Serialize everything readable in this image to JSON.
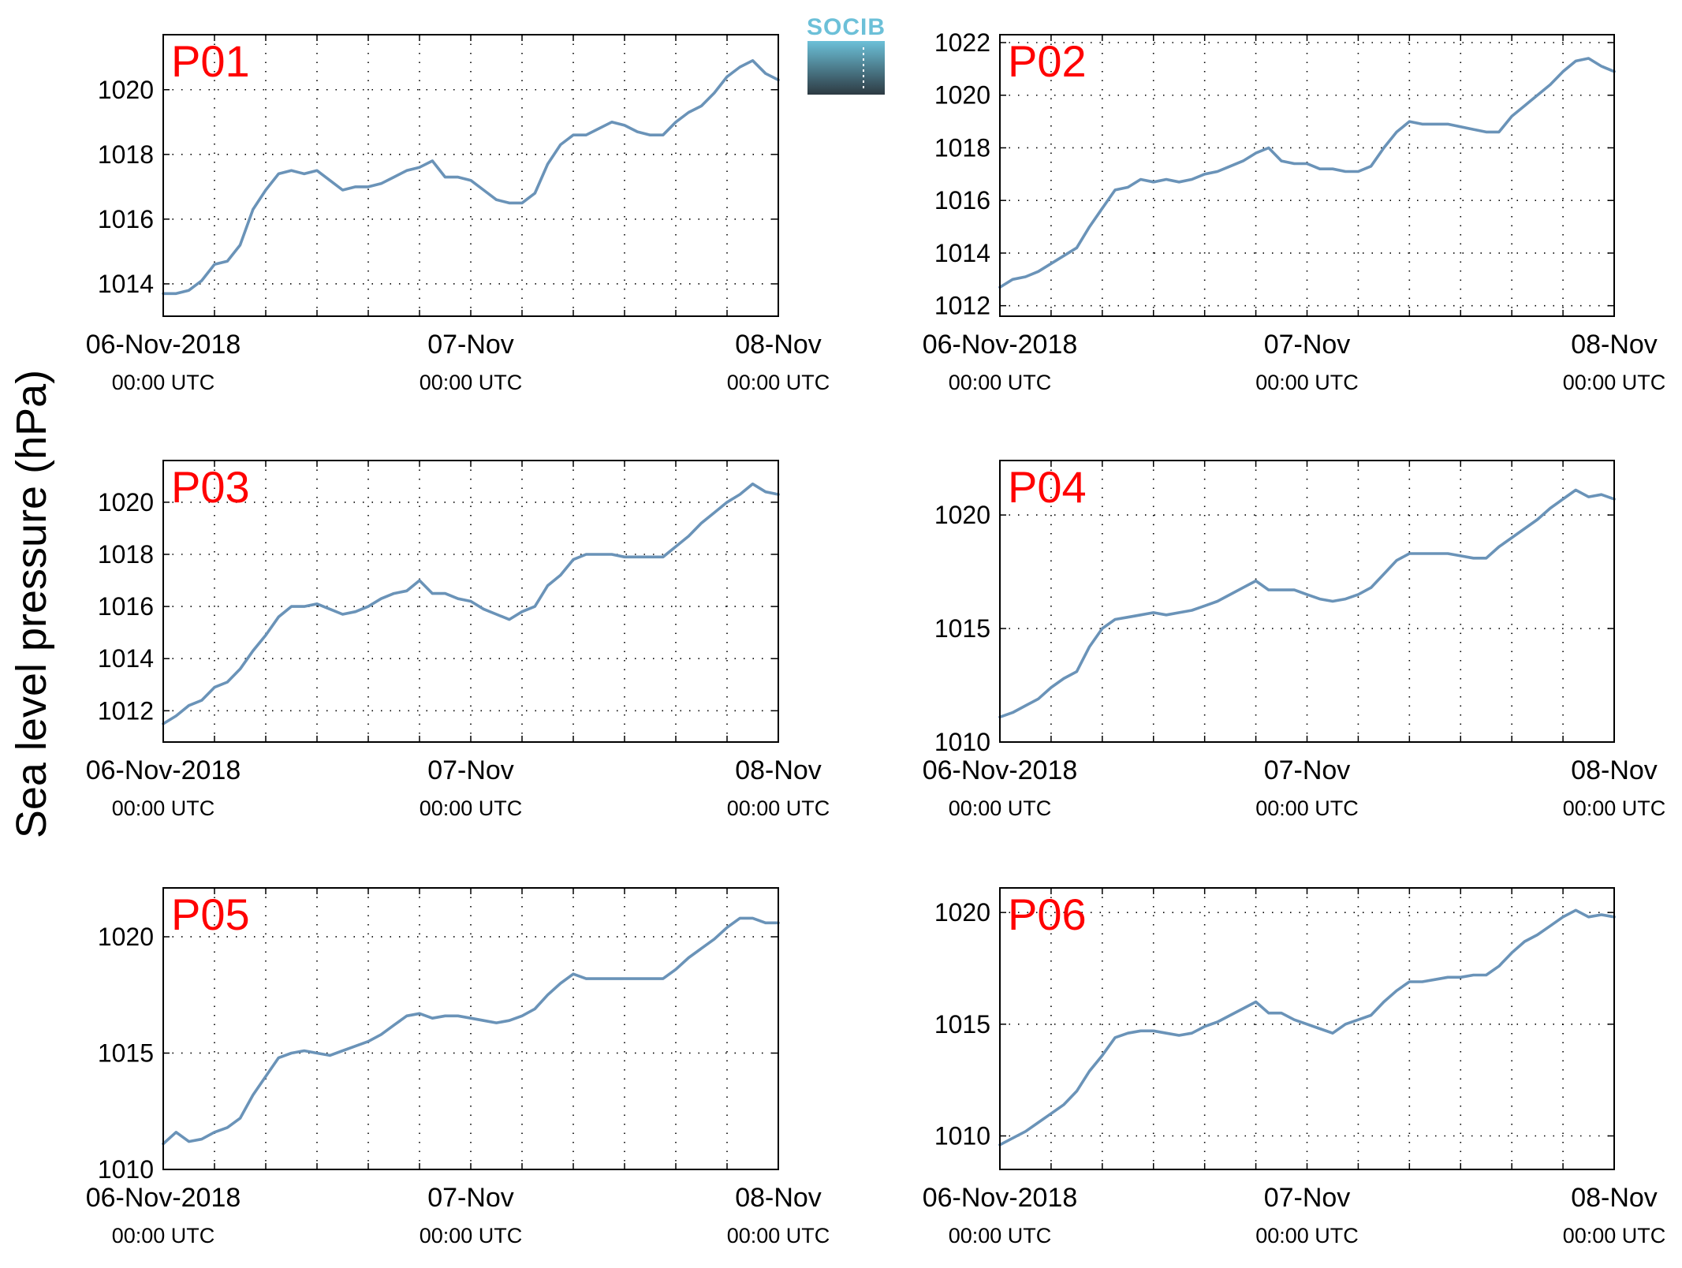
{
  "figure": {
    "ylabel": "Sea level pressure (hPa)",
    "logo": {
      "text": "SOCIB",
      "text_color": "#6cc0d8",
      "grad_top": "#6cc0d8",
      "grad_bottom": "#2d3a42"
    },
    "line_color": "#6a93b8",
    "panel_label_color": "#ff0000"
  },
  "chart_data": [
    {
      "type": "line",
      "label": "P01",
      "x_ticks": [
        {
          "x": 0,
          "date": "06-Nov-2018",
          "time": "00:00 UTC"
        },
        {
          "x": 24,
          "date": "07-Nov",
          "time": "00:00 UTC"
        },
        {
          "x": 48,
          "date": "08-Nov",
          "time": "00:00 UTC"
        }
      ],
      "xlim": [
        0,
        48
      ],
      "ylim": [
        1013,
        1021.7
      ],
      "yticks": [
        1014,
        1016,
        1018,
        1020
      ],
      "grid": true,
      "x": [
        0,
        1,
        2,
        3,
        4,
        5,
        6,
        7,
        8,
        9,
        10,
        11,
        12,
        13,
        14,
        15,
        16,
        17,
        18,
        19,
        20,
        21,
        22,
        23,
        24,
        25,
        26,
        27,
        28,
        29,
        30,
        31,
        32,
        33,
        34,
        35,
        36,
        37,
        38,
        39,
        40,
        41,
        42,
        43,
        44,
        45,
        46,
        47,
        48
      ],
      "values": [
        1013.7,
        1013.7,
        1013.8,
        1014.1,
        1014.6,
        1014.7,
        1015.2,
        1016.3,
        1016.9,
        1017.4,
        1017.5,
        1017.4,
        1017.5,
        1017.2,
        1016.9,
        1017.0,
        1017.0,
        1017.1,
        1017.3,
        1017.5,
        1017.6,
        1017.8,
        1017.3,
        1017.3,
        1017.2,
        1016.9,
        1016.6,
        1016.5,
        1016.5,
        1016.8,
        1017.7,
        1018.3,
        1018.6,
        1018.6,
        1018.8,
        1019.0,
        1018.9,
        1018.7,
        1018.6,
        1018.6,
        1019.0,
        1019.3,
        1019.5,
        1019.9,
        1020.4,
        1020.7,
        1020.9,
        1020.5,
        1020.3
      ]
    },
    {
      "type": "line",
      "label": "P02",
      "x_ticks": [
        {
          "x": 0,
          "date": "06-Nov-2018",
          "time": "00:00 UTC"
        },
        {
          "x": 24,
          "date": "07-Nov",
          "time": "00:00 UTC"
        },
        {
          "x": 48,
          "date": "08-Nov",
          "time": "00:00 UTC"
        }
      ],
      "xlim": [
        0,
        48
      ],
      "ylim": [
        1011.6,
        1022.3
      ],
      "yticks": [
        1012,
        1014,
        1016,
        1018,
        1020,
        1022
      ],
      "grid": true,
      "x": [
        0,
        1,
        2,
        3,
        4,
        5,
        6,
        7,
        8,
        9,
        10,
        11,
        12,
        13,
        14,
        15,
        16,
        17,
        18,
        19,
        20,
        21,
        22,
        23,
        24,
        25,
        26,
        27,
        28,
        29,
        30,
        31,
        32,
        33,
        34,
        35,
        36,
        37,
        38,
        39,
        40,
        41,
        42,
        43,
        44,
        45,
        46,
        47,
        48
      ],
      "values": [
        1012.7,
        1013.0,
        1013.1,
        1013.3,
        1013.6,
        1013.9,
        1014.2,
        1015.0,
        1015.7,
        1016.4,
        1016.5,
        1016.8,
        1016.7,
        1016.8,
        1016.7,
        1016.8,
        1017.0,
        1017.1,
        1017.3,
        1017.5,
        1017.8,
        1018.0,
        1017.5,
        1017.4,
        1017.4,
        1017.2,
        1017.2,
        1017.1,
        1017.1,
        1017.3,
        1018.0,
        1018.6,
        1019.0,
        1018.9,
        1018.9,
        1018.9,
        1018.8,
        1018.7,
        1018.6,
        1018.6,
        1019.2,
        1019.6,
        1020.0,
        1020.4,
        1020.9,
        1021.3,
        1021.4,
        1021.1,
        1020.9
      ]
    },
    {
      "type": "line",
      "label": "P03",
      "x_ticks": [
        {
          "x": 0,
          "date": "06-Nov-2018",
          "time": "00:00 UTC"
        },
        {
          "x": 24,
          "date": "07-Nov",
          "time": "00:00 UTC"
        },
        {
          "x": 48,
          "date": "08-Nov",
          "time": "00:00 UTC"
        }
      ],
      "xlim": [
        0,
        48
      ],
      "ylim": [
        1010.8,
        1021.6
      ],
      "yticks": [
        1012,
        1014,
        1016,
        1018,
        1020
      ],
      "grid": true,
      "x": [
        0,
        1,
        2,
        3,
        4,
        5,
        6,
        7,
        8,
        9,
        10,
        11,
        12,
        13,
        14,
        15,
        16,
        17,
        18,
        19,
        20,
        21,
        22,
        23,
        24,
        25,
        26,
        27,
        28,
        29,
        30,
        31,
        32,
        33,
        34,
        35,
        36,
        37,
        38,
        39,
        40,
        41,
        42,
        43,
        44,
        45,
        46,
        47,
        48
      ],
      "values": [
        1011.5,
        1011.8,
        1012.2,
        1012.4,
        1012.9,
        1013.1,
        1013.6,
        1014.3,
        1014.9,
        1015.6,
        1016.0,
        1016.0,
        1016.1,
        1015.9,
        1015.7,
        1015.8,
        1016.0,
        1016.3,
        1016.5,
        1016.6,
        1017.0,
        1016.5,
        1016.5,
        1016.3,
        1016.2,
        1015.9,
        1015.7,
        1015.5,
        1015.8,
        1016.0,
        1016.8,
        1017.2,
        1017.8,
        1018.0,
        1018.0,
        1018.0,
        1017.9,
        1017.9,
        1017.9,
        1017.9,
        1018.3,
        1018.7,
        1019.2,
        1019.6,
        1020.0,
        1020.3,
        1020.7,
        1020.4,
        1020.3
      ]
    },
    {
      "type": "line",
      "label": "P04",
      "x_ticks": [
        {
          "x": 0,
          "date": "06-Nov-2018",
          "time": "00:00 UTC"
        },
        {
          "x": 24,
          "date": "07-Nov",
          "time": "00:00 UTC"
        },
        {
          "x": 48,
          "date": "08-Nov",
          "time": "00:00 UTC"
        }
      ],
      "xlim": [
        0,
        48
      ],
      "ylim": [
        1010,
        1022.4
      ],
      "yticks": [
        1010,
        1015,
        1020
      ],
      "grid": true,
      "x": [
        0,
        1,
        2,
        3,
        4,
        5,
        6,
        7,
        8,
        9,
        10,
        11,
        12,
        13,
        14,
        15,
        16,
        17,
        18,
        19,
        20,
        21,
        22,
        23,
        24,
        25,
        26,
        27,
        28,
        29,
        30,
        31,
        32,
        33,
        34,
        35,
        36,
        37,
        38,
        39,
        40,
        41,
        42,
        43,
        44,
        45,
        46,
        47,
        48
      ],
      "values": [
        1011.1,
        1011.3,
        1011.6,
        1011.9,
        1012.4,
        1012.8,
        1013.1,
        1014.2,
        1015.0,
        1015.4,
        1015.5,
        1015.6,
        1015.7,
        1015.6,
        1015.7,
        1015.8,
        1016.0,
        1016.2,
        1016.5,
        1016.8,
        1017.1,
        1016.7,
        1016.7,
        1016.7,
        1016.5,
        1016.3,
        1016.2,
        1016.3,
        1016.5,
        1016.8,
        1017.4,
        1018.0,
        1018.3,
        1018.3,
        1018.3,
        1018.3,
        1018.2,
        1018.1,
        1018.1,
        1018.6,
        1019.0,
        1019.4,
        1019.8,
        1020.3,
        1020.7,
        1021.1,
        1020.8,
        1020.9,
        1020.7
      ]
    },
    {
      "type": "line",
      "label": "P05",
      "x_ticks": [
        {
          "x": 0,
          "date": "06-Nov-2018",
          "time": "00:00 UTC"
        },
        {
          "x": 24,
          "date": "07-Nov",
          "time": "00:00 UTC"
        },
        {
          "x": 48,
          "date": "08-Nov",
          "time": "00:00 UTC"
        }
      ],
      "xlim": [
        0,
        48
      ],
      "ylim": [
        1010,
        1022.1
      ],
      "yticks": [
        1010,
        1015,
        1020
      ],
      "grid": true,
      "x": [
        0,
        1,
        2,
        3,
        4,
        5,
        6,
        7,
        8,
        9,
        10,
        11,
        12,
        13,
        14,
        15,
        16,
        17,
        18,
        19,
        20,
        21,
        22,
        23,
        24,
        25,
        26,
        27,
        28,
        29,
        30,
        31,
        32,
        33,
        34,
        35,
        36,
        37,
        38,
        39,
        40,
        41,
        42,
        43,
        44,
        45,
        46,
        47,
        48
      ],
      "values": [
        1011.1,
        1011.6,
        1011.2,
        1011.3,
        1011.6,
        1011.8,
        1012.2,
        1013.2,
        1014.0,
        1014.8,
        1015.0,
        1015.1,
        1015.0,
        1014.9,
        1015.1,
        1015.3,
        1015.5,
        1015.8,
        1016.2,
        1016.6,
        1016.7,
        1016.5,
        1016.6,
        1016.6,
        1016.5,
        1016.4,
        1016.3,
        1016.4,
        1016.6,
        1016.9,
        1017.5,
        1018.0,
        1018.4,
        1018.2,
        1018.2,
        1018.2,
        1018.2,
        1018.2,
        1018.2,
        1018.2,
        1018.6,
        1019.1,
        1019.5,
        1019.9,
        1020.4,
        1020.8,
        1020.8,
        1020.6,
        1020.6
      ]
    },
    {
      "type": "line",
      "label": "P06",
      "x_ticks": [
        {
          "x": 0,
          "date": "06-Nov-2018",
          "time": "00:00 UTC"
        },
        {
          "x": 24,
          "date": "07-Nov",
          "time": "00:00 UTC"
        },
        {
          "x": 48,
          "date": "08-Nov",
          "time": "00:00 UTC"
        }
      ],
      "xlim": [
        0,
        48
      ],
      "ylim": [
        1008.5,
        1021.1
      ],
      "yticks": [
        1010,
        1015,
        1020
      ],
      "grid": true,
      "x": [
        0,
        1,
        2,
        3,
        4,
        5,
        6,
        7,
        8,
        9,
        10,
        11,
        12,
        13,
        14,
        15,
        16,
        17,
        18,
        19,
        20,
        21,
        22,
        23,
        24,
        25,
        26,
        27,
        28,
        29,
        30,
        31,
        32,
        33,
        34,
        35,
        36,
        37,
        38,
        39,
        40,
        41,
        42,
        43,
        44,
        45,
        46,
        47,
        48
      ],
      "values": [
        1009.6,
        1009.9,
        1010.2,
        1010.6,
        1011.0,
        1011.4,
        1012.0,
        1012.9,
        1013.6,
        1014.4,
        1014.6,
        1014.7,
        1014.7,
        1014.6,
        1014.5,
        1014.6,
        1014.9,
        1015.1,
        1015.4,
        1015.7,
        1016.0,
        1015.5,
        1015.5,
        1015.2,
        1015.0,
        1014.8,
        1014.6,
        1015.0,
        1015.2,
        1015.4,
        1016.0,
        1016.5,
        1016.9,
        1016.9,
        1017.0,
        1017.1,
        1017.1,
        1017.2,
        1017.2,
        1017.6,
        1018.2,
        1018.7,
        1019.0,
        1019.4,
        1019.8,
        1020.1,
        1019.8,
        1019.9,
        1019.8
      ]
    }
  ]
}
